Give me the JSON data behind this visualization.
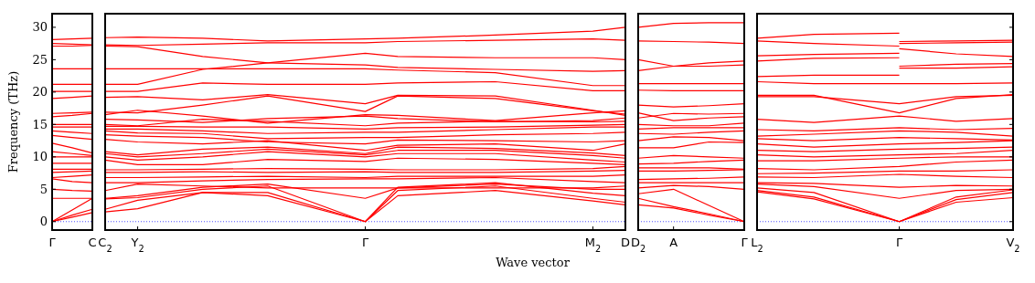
{
  "chart_data": [
    {
      "type": "line",
      "ylabel": "Frequency (THz)",
      "categories": [
        "Γ",
        null,
        "C"
      ],
      "ylim": [
        -1.3,
        32.1
      ],
      "yticks": [
        0,
        5,
        10,
        15,
        20,
        25,
        30
      ],
      "ref_lines": [
        {
          "axis": "y",
          "value": 0,
          "color": "#0000ff",
          "line_style": "dotted"
        }
      ],
      "series": [
        {
          "color": "#ff0000",
          "values": [
            0,
            1.8,
            3.6
          ]
        },
        {
          "color": "#ff0000",
          "values": [
            0,
            1,
            1.9
          ]
        },
        {
          "color": "#ff0000",
          "values": [
            0,
            0.7,
            1.4
          ]
        },
        {
          "color": "#ff0000",
          "values": [
            3.6,
            3.6,
            3.6
          ]
        },
        {
          "color": "#ff0000",
          "values": [
            5.0,
            4.8,
            4.7
          ]
        },
        {
          "color": "#ff0000",
          "values": [
            6.6,
            6.2,
            6.0
          ]
        },
        {
          "color": "#ff0000",
          "values": [
            6.8,
            7.0,
            7.2
          ]
        },
        {
          "color": "#ff0000",
          "values": [
            7.6,
            7.7,
            7.8
          ]
        },
        {
          "color": "#ff0000",
          "values": [
            8.1,
            8.1,
            8.1
          ]
        },
        {
          "color": "#ff0000",
          "values": [
            9.0,
            9.0,
            9.0
          ]
        },
        {
          "color": "#ff0000",
          "values": [
            10.0,
            10.0,
            10.0
          ]
        },
        {
          "color": "#ff0000",
          "values": [
            10.8,
            10.5,
            10.2
          ]
        },
        {
          "color": "#ff0000",
          "values": [
            12.1,
            11.4,
            10.6
          ]
        },
        {
          "color": "#ff0000",
          "values": [
            13.3,
            13.0,
            12.7
          ]
        },
        {
          "color": "#ff0000",
          "values": [
            14.0,
            13.8,
            13.6
          ]
        },
        {
          "color": "#ff0000",
          "values": [
            14.6,
            14.6,
            14.6
          ]
        },
        {
          "color": "#ff0000",
          "values": [
            15.0,
            15.0,
            15.0
          ]
        },
        {
          "color": "#ff0000",
          "values": [
            16.2,
            16.4,
            16.7
          ]
        },
        {
          "color": "#ff0000",
          "values": [
            16.7,
            16.8,
            16.9
          ]
        },
        {
          "color": "#ff0000",
          "values": [
            19.0,
            19.2,
            19.4
          ]
        },
        {
          "color": "#ff0000",
          "values": [
            20.1,
            20.1,
            20.1
          ]
        },
        {
          "color": "#ff0000",
          "values": [
            21.2,
            21.2,
            21.2
          ]
        },
        {
          "color": "#ff0000",
          "values": [
            23.6,
            23.6,
            23.6
          ]
        },
        {
          "color": "#ff0000",
          "values": [
            27.1,
            27.1,
            27.2
          ]
        },
        {
          "color": "#ff0000",
          "values": [
            27.5,
            27.4,
            27.3
          ]
        },
        {
          "color": "#ff0000",
          "values": [
            28.1,
            28.2,
            28.3
          ]
        }
      ]
    },
    {
      "type": "line",
      "xlabel": "Wave vector",
      "tick_labels": "x",
      "categories": [
        "C$_{2}$",
        "Y$_{2}$",
        null,
        null,
        null,
        null,
        null,
        null,
        "Γ",
        null,
        null,
        null,
        null,
        null,
        null,
        "M$_{2}$",
        "D"
      ],
      "ylim": [
        -1.3,
        32.1
      ],
      "ref_lines": [
        {
          "axis": "y",
          "value": 0,
          "color": "#0000ff",
          "line_style": "dotted"
        }
      ],
      "series": [
        {
          "color": "#ff0000",
          "values": [
            1.5,
            2.0,
            null,
            4.5,
            null,
            4.0,
            null,
            null,
            0,
            4.0,
            null,
            null,
            4.8,
            null,
            null,
            3.2,
            2.6
          ]
        },
        {
          "color": "#ff0000",
          "values": [
            1.9,
            3.3,
            null,
            4.5,
            null,
            4.5,
            null,
            null,
            0,
            4.8,
            null,
            null,
            5.5,
            null,
            null,
            3.6,
            3.0
          ]
        },
        {
          "color": "#ff0000",
          "values": [
            3.5,
            3.7,
            null,
            5.0,
            null,
            5.5,
            null,
            null,
            0,
            5.3,
            null,
            null,
            6.0,
            null,
            null,
            4.4,
            4.0
          ]
        },
        {
          "color": "#ff0000",
          "values": [
            3.6,
            4.0,
            null,
            5.3,
            null,
            5.8,
            null,
            null,
            3.6,
            5.2,
            null,
            null,
            5.8,
            null,
            null,
            5.0,
            5.0
          ]
        },
        {
          "color": "#ff0000",
          "values": [
            4.8,
            5.8,
            null,
            5.5,
            null,
            5.2,
            null,
            null,
            5.2,
            5.2,
            null,
            null,
            5.2,
            null,
            null,
            5.2,
            5.5
          ]
        },
        {
          "color": "#ff0000",
          "values": [
            6.0,
            6.0,
            null,
            6.3,
            null,
            6.5,
            null,
            null,
            6.6,
            6.6,
            null,
            null,
            6.8,
            null,
            null,
            6.2,
            6.0
          ]
        },
        {
          "color": "#ff0000",
          "values": [
            6.8,
            6.8,
            null,
            6.9,
            null,
            7.0,
            null,
            null,
            6.8,
            7.0,
            null,
            null,
            7.0,
            null,
            null,
            7.0,
            7.2
          ]
        },
        {
          "color": "#ff0000",
          "values": [
            7.6,
            7.6,
            null,
            7.7,
            null,
            7.6,
            null,
            null,
            7.7,
            7.6,
            null,
            null,
            7.6,
            null,
            null,
            7.8,
            7.9
          ]
        },
        {
          "color": "#ff0000",
          "values": [
            8.0,
            8.0,
            null,
            8.1,
            null,
            8.2,
            null,
            null,
            8.1,
            8.0,
            null,
            null,
            8.0,
            null,
            null,
            8.2,
            8.5
          ]
        },
        {
          "color": "#ff0000",
          "values": [
            9.5,
            8.8,
            null,
            8.8,
            null,
            9.6,
            null,
            null,
            9.3,
            9.8,
            null,
            null,
            9.6,
            null,
            null,
            9.0,
            8.8
          ]
        },
        {
          "color": "#ff0000",
          "values": [
            10.0,
            9.5,
            null,
            10.0,
            null,
            10.8,
            null,
            null,
            10.0,
            10.5,
            null,
            null,
            10.5,
            null,
            null,
            9.5,
            9.2
          ]
        },
        {
          "color": "#ff0000",
          "values": [
            10.5,
            10.0,
            null,
            10.5,
            null,
            11.2,
            null,
            null,
            10.3,
            11.0,
            null,
            null,
            11.0,
            null,
            null,
            10.2,
            9.8
          ]
        },
        {
          "color": "#ff0000",
          "values": [
            10.8,
            10.3,
            null,
            11.2,
            null,
            11.5,
            null,
            null,
            10.5,
            11.5,
            null,
            null,
            11.3,
            null,
            null,
            10.6,
            10.2
          ]
        },
        {
          "color": "#ff0000",
          "values": [
            12.7,
            12.3,
            null,
            12.0,
            null,
            12.5,
            null,
            null,
            11.0,
            11.8,
            null,
            null,
            12.0,
            null,
            null,
            11.0,
            12.0
          ]
        },
        {
          "color": "#ff0000",
          "values": [
            13.4,
            13.2,
            null,
            13.0,
            null,
            12.3,
            null,
            null,
            12.0,
            12.6,
            null,
            null,
            12.5,
            null,
            null,
            12.3,
            12.5
          ]
        },
        {
          "color": "#ff0000",
          "values": [
            14.0,
            13.7,
            null,
            13.6,
            null,
            12.8,
            null,
            null,
            13.0,
            13.0,
            null,
            null,
            13.4,
            null,
            null,
            13.6,
            13.8
          ]
        },
        {
          "color": "#ff0000",
          "values": [
            14.3,
            14.3,
            null,
            14.0,
            null,
            13.6,
            null,
            null,
            13.8,
            13.8,
            null,
            null,
            14.2,
            null,
            null,
            14.6,
            14.6
          ]
        },
        {
          "color": "#ff0000",
          "values": [
            14.7,
            14.7,
            null,
            14.6,
            null,
            14.6,
            null,
            null,
            14.3,
            14.5,
            null,
            null,
            14.6,
            null,
            null,
            14.9,
            15.0
          ]
        },
        {
          "color": "#ff0000",
          "values": [
            15.0,
            14.8,
            null,
            15.8,
            null,
            15.5,
            null,
            null,
            14.8,
            15.2,
            null,
            null,
            15.5,
            null,
            null,
            15.4,
            15.5
          ]
        },
        {
          "color": "#ff0000",
          "values": [
            15.8,
            15.7,
            null,
            15.3,
            null,
            15.9,
            null,
            null,
            16.3,
            15.9,
            null,
            null,
            15.4,
            null,
            null,
            15.6,
            16.0
          ]
        },
        {
          "color": "#ff0000",
          "values": [
            16.5,
            17.2,
            null,
            16.3,
            null,
            15.2,
            null,
            null,
            16.5,
            16.4,
            null,
            null,
            15.6,
            null,
            null,
            16.8,
            17.1
          ]
        },
        {
          "color": "#ff0000",
          "values": [
            16.9,
            16.8,
            null,
            18.0,
            null,
            19.4,
            null,
            null,
            17.0,
            19.4,
            null,
            null,
            19.0,
            null,
            null,
            17.1,
            16.6
          ]
        },
        {
          "color": "#ff0000",
          "values": [
            19.2,
            19.3,
            null,
            18.8,
            null,
            19.6,
            null,
            null,
            18.2,
            19.5,
            null,
            null,
            19.4,
            null,
            null,
            17.2,
            16.4
          ]
        },
        {
          "color": "#ff0000",
          "values": [
            20.1,
            20.1,
            null,
            21.4,
            null,
            21.2,
            null,
            null,
            21.2,
            21.4,
            null,
            null,
            21.6,
            null,
            null,
            20.2,
            20.2
          ]
        },
        {
          "color": "#ff0000",
          "values": [
            21.2,
            21.2,
            null,
            23.5,
            null,
            24.5,
            null,
            null,
            26.0,
            25.5,
            null,
            null,
            25.3,
            null,
            null,
            25.3,
            25.0
          ]
        },
        {
          "color": "#ff0000",
          "values": [
            23.6,
            23.6,
            null,
            23.6,
            null,
            23.6,
            null,
            null,
            23.6,
            23.4,
            null,
            null,
            23.0,
            null,
            null,
            21.0,
            21.0
          ]
        },
        {
          "color": "#ff0000",
          "values": [
            27.1,
            27.0,
            null,
            25.5,
            null,
            24.5,
            null,
            null,
            24.2,
            23.8,
            null,
            null,
            23.5,
            null,
            null,
            23.2,
            23.3
          ]
        },
        {
          "color": "#ff0000",
          "values": [
            27.3,
            27.2,
            null,
            27.4,
            null,
            27.6,
            null,
            null,
            27.6,
            27.8,
            null,
            null,
            28.0,
            null,
            null,
            28.2,
            28.0
          ]
        },
        {
          "color": "#ff0000",
          "values": [
            28.4,
            28.5,
            null,
            28.3,
            null,
            27.9,
            null,
            null,
            28.2,
            28.3,
            null,
            null,
            28.8,
            null,
            null,
            29.4,
            30.0
          ]
        }
      ]
    },
    {
      "type": "line",
      "tick_labels": "x",
      "categories": [
        "D$_{2}$",
        "A",
        null,
        "Γ"
      ],
      "ylim": [
        -1.3,
        32.1
      ],
      "ref_lines": [
        {
          "axis": "y",
          "value": 0,
          "color": "#0000ff",
          "line_style": "dotted"
        }
      ],
      "series": [
        {
          "color": "#ff0000",
          "values": [
            3.6,
            2.3,
            1.2,
            0
          ]
        },
        {
          "color": "#ff0000",
          "values": [
            2.6,
            2.1,
            1.0,
            0
          ]
        },
        {
          "color": "#ff0000",
          "values": [
            4.3,
            5.0,
            2.5,
            0
          ]
        },
        {
          "color": "#ff0000",
          "values": [
            5.2,
            5.6,
            5.4,
            5.0
          ]
        },
        {
          "color": "#ff0000",
          "values": [
            6.0,
            6.0,
            6.0,
            6.0
          ]
        },
        {
          "color": "#ff0000",
          "values": [
            6.5,
            6.6,
            6.7,
            6.9
          ]
        },
        {
          "color": "#ff0000",
          "values": [
            7.8,
            7.8,
            7.9,
            8.0
          ]
        },
        {
          "color": "#ff0000",
          "values": [
            8.3,
            8.3,
            8.3,
            8.1
          ]
        },
        {
          "color": "#ff0000",
          "values": [
            8.9,
            9.0,
            9.3,
            9.5
          ]
        },
        {
          "color": "#ff0000",
          "values": [
            9.8,
            10.2,
            10.0,
            9.8
          ]
        },
        {
          "color": "#ff0000",
          "values": [
            11.4,
            11.4,
            12.3,
            12.2
          ]
        },
        {
          "color": "#ff0000",
          "values": [
            12.5,
            13.1,
            13.0,
            12.5
          ]
        },
        {
          "color": "#ff0000",
          "values": [
            13.6,
            13.5,
            13.8,
            14.0
          ]
        },
        {
          "color": "#ff0000",
          "values": [
            14.3,
            14.5,
            14.5,
            14.5
          ]
        },
        {
          "color": "#ff0000",
          "values": [
            15.0,
            14.8,
            14.8,
            15.2
          ]
        },
        {
          "color": "#ff0000",
          "values": [
            16.8,
            15.6,
            16.0,
            16.2
          ]
        },
        {
          "color": "#ff0000",
          "values": [
            16.0,
            16.7,
            16.6,
            16.7
          ]
        },
        {
          "color": "#ff0000",
          "values": [
            18.0,
            17.7,
            17.9,
            18.2
          ]
        },
        {
          "color": "#ff0000",
          "values": [
            20.3,
            20.2,
            20.2,
            20.2
          ]
        },
        {
          "color": "#ff0000",
          "values": [
            21.3,
            21.3,
            21.3,
            21.3
          ]
        },
        {
          "color": "#ff0000",
          "values": [
            25.0,
            24.0,
            24.0,
            24.2
          ]
        },
        {
          "color": "#ff0000",
          "values": [
            23.3,
            24.0,
            24.5,
            24.8
          ]
        },
        {
          "color": "#ff0000",
          "values": [
            27.9,
            27.8,
            27.7,
            27.5
          ]
        },
        {
          "color": "#ff0000",
          "values": [
            30.0,
            30.6,
            30.7,
            30.7
          ]
        }
      ]
    },
    {
      "type": "line",
      "tick_labels": "x",
      "categories": [
        "L$_{2}$",
        null,
        null,
        null,
        null,
        "Γ",
        null,
        null,
        null,
        "V$_{2}$"
      ],
      "ylim": [
        -1.3,
        32.1
      ],
      "yticks": [
        {
          "value": 0,
          "label": null
        },
        {
          "value": 5,
          "label": null
        },
        {
          "value": 10,
          "label": null
        },
        {
          "value": 15,
          "label": null
        },
        {
          "value": 20,
          "label": null
        },
        {
          "value": 25,
          "label": null
        },
        {
          "value": 30,
          "label": null
        }
      ],
      "ref_lines": [
        {
          "axis": "y",
          "value": 0,
          "color": "#0000ff",
          "line_style": "dotted"
        }
      ],
      "series": [
        {
          "color": "#ff0000",
          "values": [
            4.6,
            null,
            3.5,
            null,
            null,
            0,
            null,
            3.0,
            null,
            3.7
          ]
        },
        {
          "color": "#ff0000",
          "values": [
            4.8,
            null,
            3.8,
            null,
            null,
            0,
            null,
            3.4,
            null,
            4.5
          ]
        },
        {
          "color": "#ff0000",
          "values": [
            5.2,
            null,
            4.5,
            null,
            null,
            0,
            null,
            3.8,
            null,
            4.9
          ]
        },
        {
          "color": "#ff0000",
          "values": [
            5.8,
            null,
            5.4,
            null,
            null,
            3.6,
            null,
            4.8,
            null,
            5.0
          ]
        },
        {
          "color": "#ff0000",
          "values": [
            6.0,
            null,
            5.9,
            null,
            null,
            5.3,
            null,
            5.6,
            null,
            5.5
          ]
        },
        {
          "color": "#ff0000",
          "values": [
            6.9,
            null,
            6.8,
            null,
            null,
            7.3,
            null,
            7.0,
            null,
            6.8
          ]
        },
        {
          "color": "#ff0000",
          "values": [
            7.4,
            null,
            7.5,
            null,
            null,
            7.8,
            null,
            7.8,
            null,
            8.0
          ]
        },
        {
          "color": "#ff0000",
          "values": [
            8.2,
            null,
            8.0,
            null,
            null,
            8.5,
            null,
            9.2,
            null,
            9.5
          ]
        },
        {
          "color": "#ff0000",
          "values": [
            9.4,
            null,
            9.4,
            null,
            null,
            9.8,
            null,
            10.0,
            null,
            10.0
          ]
        },
        {
          "color": "#ff0000",
          "values": [
            10.3,
            null,
            10.0,
            null,
            null,
            10.3,
            null,
            10.5,
            null,
            11.0
          ]
        },
        {
          "color": "#ff0000",
          "values": [
            11.0,
            null,
            10.8,
            null,
            null,
            11.2,
            null,
            11.3,
            null,
            11.5
          ]
        },
        {
          "color": "#ff0000",
          "values": [
            12.0,
            null,
            11.5,
            null,
            null,
            12.0,
            null,
            12.2,
            null,
            12.5
          ]
        },
        {
          "color": "#ff0000",
          "values": [
            12.8,
            null,
            12.5,
            null,
            null,
            13.0,
            null,
            12.8,
            null,
            12.6
          ]
        },
        {
          "color": "#ff0000",
          "values": [
            13.2,
            null,
            13.5,
            null,
            null,
            14.0,
            null,
            13.8,
            null,
            13.2
          ]
        },
        {
          "color": "#ff0000",
          "values": [
            14.2,
            null,
            14.0,
            null,
            null,
            14.5,
            null,
            14.2,
            null,
            14.4
          ]
        },
        {
          "color": "#ff0000",
          "values": [
            15.8,
            null,
            15.3,
            null,
            null,
            16.3,
            null,
            15.5,
            null,
            15.9
          ]
        },
        {
          "color": "#ff0000",
          "values": [
            19.5,
            null,
            19.5,
            null,
            null,
            16.8,
            null,
            19.0,
            null,
            19.6
          ]
        },
        {
          "color": "#ff0000",
          "values": [
            19.3,
            null,
            19.3,
            null,
            null,
            18.2,
            null,
            19.3,
            null,
            19.5
          ]
        },
        {
          "color": "#ff0000",
          "values": [
            21.6,
            null,
            21.3,
            null,
            null,
            21.3,
            null,
            21.3,
            null,
            21.4
          ]
        },
        {
          "color": "#ff0000",
          "values": [
            22.4,
            null,
            22.6,
            null,
            null,
            22.6,
            null,
            null,
            null,
            null
          ]
        },
        {
          "color": "#ff0000",
          "values": [
            24.8,
            null,
            25.2,
            null,
            null,
            25.3,
            null,
            null,
            null,
            null
          ]
        },
        {
          "color": "#ff0000",
          "values": [
            25.6,
            null,
            25.8,
            null,
            null,
            26.0,
            null,
            null,
            null,
            null
          ]
        },
        {
          "color": "#ff0000",
          "values": [
            28.3,
            null,
            28.9,
            null,
            null,
            29.1,
            null,
            null,
            null,
            null
          ]
        },
        {
          "color": "#ff0000",
          "values": [
            27.9,
            null,
            27.5,
            null,
            null,
            27.1,
            null,
            null,
            null,
            null
          ]
        },
        {
          "color": "#ff0000",
          "values": [
            null,
            null,
            null,
            null,
            null,
            27.8,
            null,
            27.9,
            null,
            28.0
          ]
        },
        {
          "color": "#ff0000",
          "values": [
            null,
            null,
            null,
            null,
            null,
            27.5,
            null,
            27.6,
            null,
            27.7
          ]
        },
        {
          "color": "#ff0000",
          "values": [
            null,
            null,
            null,
            null,
            null,
            26.7,
            null,
            25.9,
            null,
            25.5
          ]
        },
        {
          "color": "#ff0000",
          "values": [
            null,
            null,
            null,
            null,
            null,
            24.0,
            null,
            24.3,
            null,
            24.4
          ]
        },
        {
          "color": "#ff0000",
          "values": [
            null,
            null,
            null,
            null,
            null,
            23.7,
            null,
            23.7,
            null,
            23.9
          ]
        }
      ]
    }
  ]
}
